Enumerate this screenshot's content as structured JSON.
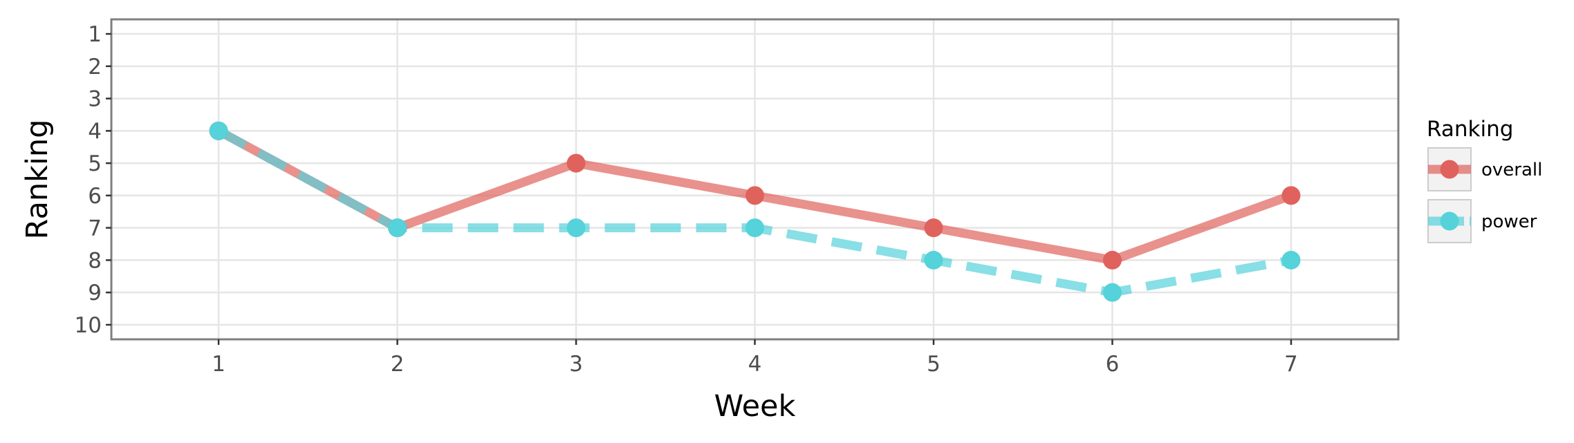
{
  "chart_data": {
    "type": "line",
    "xlabel": "Week",
    "ylabel": "Ranking",
    "x": [
      1,
      2,
      3,
      4,
      5,
      6,
      7
    ],
    "xlim": [
      0.4,
      7.6
    ],
    "ylim": [
      10.45,
      0.55
    ],
    "y_reversed": true,
    "x_ticks": [
      "1",
      "2",
      "3",
      "4",
      "5",
      "6",
      "7"
    ],
    "y_ticks": [
      "1",
      "2",
      "3",
      "4",
      "5",
      "6",
      "7",
      "8",
      "9",
      "10"
    ],
    "grid": true,
    "legend_title": "Ranking",
    "legend_position": "right",
    "series": [
      {
        "name": "overall",
        "values": [
          4,
          7,
          5,
          6,
          7,
          8,
          6
        ],
        "color": "#e0625c",
        "linestyle": "solid"
      },
      {
        "name": "power",
        "values": [
          4,
          7,
          7,
          7,
          8,
          9,
          8
        ],
        "color": "#55d2da",
        "linestyle": "dashed"
      }
    ]
  }
}
